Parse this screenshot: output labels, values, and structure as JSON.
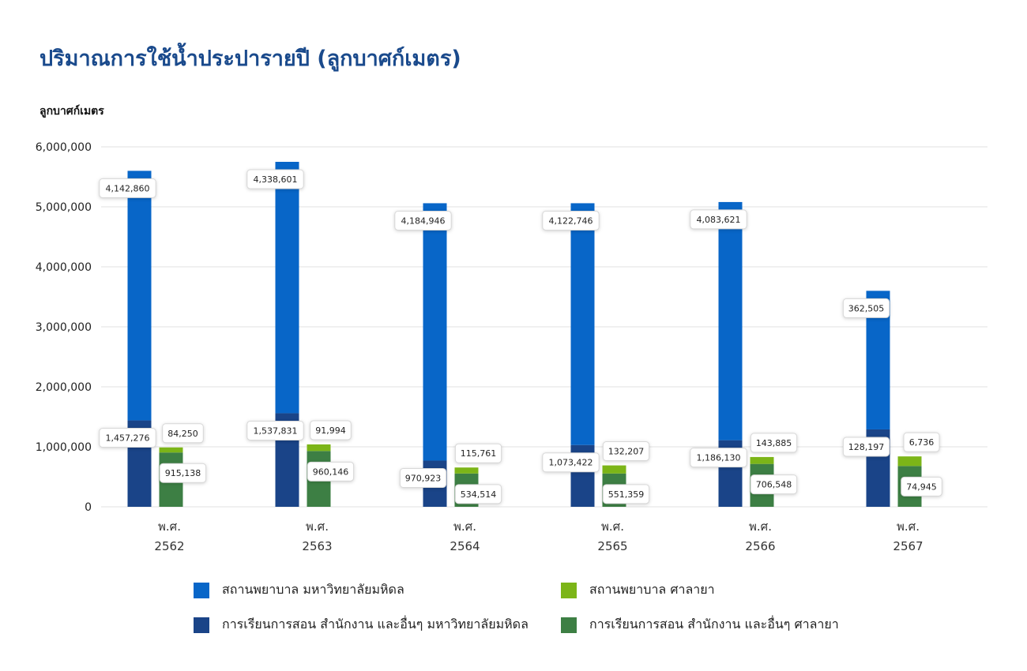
{
  "title": "ปริมาณการใช้น้ำประปารายปี (ลูกบาศก์เมตร)",
  "chart_data": {
    "type": "bar",
    "stacked": true,
    "ylabel": "ลูกบาศก์เมตร",
    "ylim": [
      0,
      6000000
    ],
    "yticks": [
      "0",
      "1,000,000",
      "2,000,000",
      "3,000,000",
      "4,000,000",
      "5,000,000",
      "6,000,000"
    ],
    "grid": true,
    "legend_position": "bottom",
    "categories": [
      [
        "พ.ศ.",
        "2562"
      ],
      [
        "พ.ศ.",
        "2563"
      ],
      [
        "พ.ศ.",
        "2564"
      ],
      [
        "พ.ศ.",
        "2565"
      ],
      [
        "พ.ศ.",
        "2566"
      ],
      [
        "พ.ศ.",
        "2567"
      ]
    ],
    "series": [
      {
        "name": "การเรียนการสอน สำนักงาน และอื่นๆ มหาวิทยาลัยมหิดล",
        "stack": "mahidol",
        "color": "#1a4488",
        "values": [
          1457276,
          1537831,
          970923,
          1073422,
          1186130,
          128197
        ]
      },
      {
        "name": "สถานพยาบาล มหาวิทยาลัยมหิดล",
        "stack": "mahidol",
        "color": "#0866c8",
        "values": [
          4142860,
          4338601,
          4184946,
          4122746,
          4083621,
          362505
        ]
      },
      {
        "name": "การเรียนการสอน สำนักงาน และอื่นๆ ศาลายา",
        "stack": "salaya",
        "color": "#3d7f44",
        "values": [
          915138,
          960146,
          534514,
          551359,
          706548,
          74945
        ]
      },
      {
        "name": "สถานพยาบาล ศาลายา",
        "stack": "salaya",
        "color": "#7cb518",
        "values": [
          84250,
          91994,
          115761,
          132207,
          143885,
          6736
        ]
      }
    ],
    "data_labels": [
      [
        "1,457,276",
        "1,537,831",
        "970,923",
        "1,073,422",
        "1,186,130",
        "128,197"
      ],
      [
        "4,142,860",
        "4,338,601",
        "4,184,946",
        "4,122,746",
        "4,083,621",
        "362,505"
      ],
      [
        "915,138",
        "960,146",
        "534,514",
        "551,359",
        "706,548",
        "74,945"
      ],
      [
        "84,250",
        "91,994",
        "115,761",
        "132,207",
        "143,885",
        "6,736"
      ]
    ],
    "visual_totals": {
      "mahidol": [
        5600000,
        5750000,
        5060000,
        5060000,
        5080000,
        3600000
      ],
      "salaya": [
        990000,
        1040000,
        655000,
        690000,
        830000,
        840000
      ],
      "mahidol_lower": [
        1440000,
        1560000,
        770000,
        1030000,
        1110000,
        1290000
      ],
      "salaya_lower": [
        905000,
        930000,
        555000,
        555000,
        715000,
        680000
      ]
    }
  },
  "legend": {
    "items": [
      {
        "label": "สถานพยาบาล มหาวิทยาลัยมหิดล",
        "color": "#0866c8"
      },
      {
        "label": "สถานพยาบาล ศาลายา",
        "color": "#7cb518"
      },
      {
        "label": "การเรียนการสอน สำนักงาน และอื่นๆ มหาวิทยาลัยมหิดล",
        "color": "#1a4488"
      },
      {
        "label": "การเรียนการสอน สำนักงาน และอื่นๆ ศาลายา",
        "color": "#3d7f44"
      }
    ]
  }
}
